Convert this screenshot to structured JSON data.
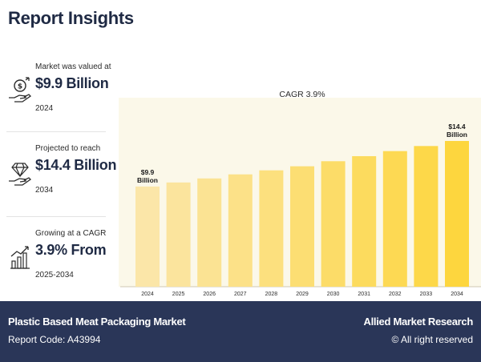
{
  "header": {
    "title": "Report Insights"
  },
  "stats": [
    {
      "label": "Market was valued at",
      "value": "$9.9 Billion",
      "year": "2024",
      "icon": "money-hand-icon"
    },
    {
      "label": "Projected to reach",
      "value": "$14.4 Billion",
      "year": "2034",
      "icon": "diamond-hand-icon"
    },
    {
      "label": "Growing at a CAGR",
      "value": "3.9% From",
      "year": "2025-2034",
      "icon": "growth-chart-icon"
    }
  ],
  "chart_data": {
    "type": "bar",
    "categories": [
      "2024",
      "2025",
      "2026",
      "2027",
      "2028",
      "2029",
      "2030",
      "2031",
      "2032",
      "2033",
      "2034"
    ],
    "values": [
      9.9,
      10.3,
      10.7,
      11.1,
      11.5,
      11.9,
      12.4,
      12.9,
      13.4,
      13.9,
      14.4
    ],
    "title": "",
    "annotation": "CAGR 3.9%",
    "labels": [
      {
        "index": 0,
        "text": [
          "$9.9",
          "Billion"
        ]
      },
      {
        "index": 10,
        "text": [
          "$14.4",
          "Billion"
        ]
      }
    ],
    "xlabel": "",
    "ylabel": "",
    "grid": false,
    "colors": {
      "start": "#fbe6a8",
      "end": "#fdd63e"
    }
  },
  "footer": {
    "report_title": "Plastic Based Meat Packaging Market",
    "report_code": "Report Code: A43994",
    "brand": "Allied Market Research",
    "rights": "© All right reserved"
  }
}
